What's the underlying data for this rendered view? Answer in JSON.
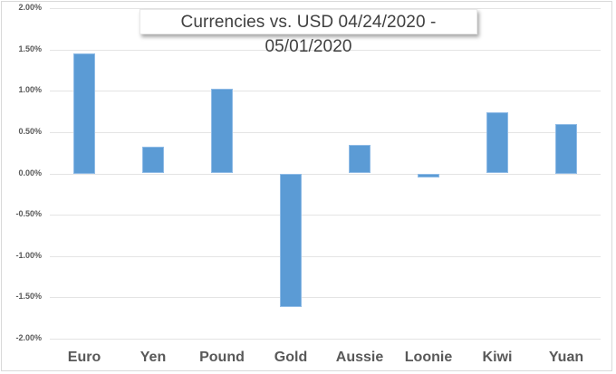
{
  "chart_data": {
    "type": "bar",
    "title": "Currencies vs. USD 04/24/2020 - 05/01/2020",
    "xlabel": "",
    "ylabel": "",
    "categories": [
      "Euro",
      "Yen",
      "Pound",
      "Gold",
      "Aussie",
      "Loonie",
      "Kiwi",
      "Yuan"
    ],
    "values": [
      1.45,
      0.32,
      1.02,
      -1.62,
      0.34,
      -0.05,
      0.74,
      0.6
    ],
    "unit": "%",
    "ylim": [
      -2.0,
      2.0
    ],
    "yticks": [
      2.0,
      1.5,
      1.0,
      0.5,
      0.0,
      -0.5,
      -1.0,
      -1.5,
      -2.0
    ],
    "ytick_labels": [
      "2.00%",
      "1.50%",
      "1.00%",
      "0.50%",
      "0.00%",
      "-0.50%",
      "-1.00%",
      "-1.50%",
      "-2.00%"
    ],
    "grid": true,
    "legend": null,
    "bar_color": "#5b9bd5"
  }
}
